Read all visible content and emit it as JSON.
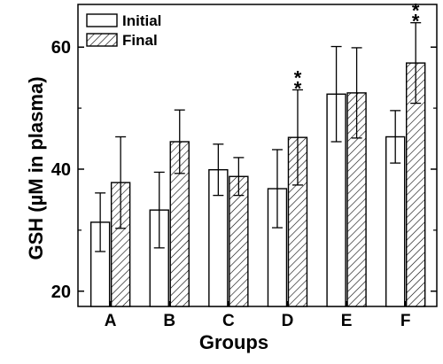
{
  "chart_data": {
    "type": "bar",
    "categories": [
      "A",
      "B",
      "C",
      "D",
      "E",
      "F"
    ],
    "series": [
      {
        "name": "Initial",
        "values": [
          31.3,
          33.3,
          39.9,
          36.8,
          52.3,
          45.3
        ],
        "errors": [
          4.8,
          6.2,
          4.2,
          6.4,
          7.8,
          4.3
        ],
        "pattern": "empty"
      },
      {
        "name": "Final",
        "values": [
          37.8,
          44.5,
          38.8,
          45.2,
          52.5,
          57.4
        ],
        "errors": [
          7.5,
          5.2,
          3.1,
          7.8,
          7.4,
          6.6
        ],
        "pattern": "hatched"
      }
    ],
    "significance": [
      {
        "category": "D",
        "series": "Final",
        "label": "**"
      },
      {
        "category": "F",
        "series": "Final",
        "label": "**"
      }
    ],
    "xlabel": "Groups",
    "ylabel": "GSH (µM in plasma)",
    "ylim": [
      17.5,
      67
    ],
    "yticks": [
      20,
      40,
      60
    ],
    "legend_position": "top-left",
    "grid": false,
    "colors": {
      "bar_stroke": "#000000",
      "bar_fill": "#ffffff",
      "hatch": "#000000"
    }
  }
}
